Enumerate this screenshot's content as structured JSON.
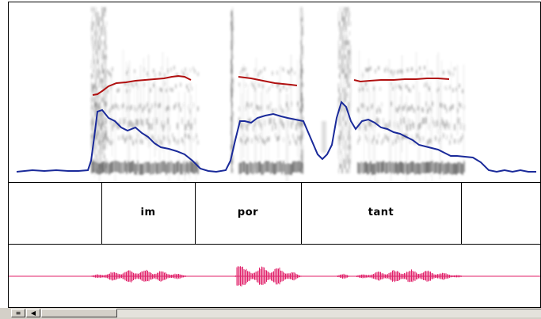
{
  "tiers": {
    "syllables": [
      {
        "label": "im"
      },
      {
        "label": "por"
      },
      {
        "label": "tant"
      }
    ]
  },
  "colors": {
    "pitch_curve": "#b01010",
    "intensity_curve": "#1a2a9a",
    "waveform": "#e0206a",
    "spectrogram_ink": "#303030"
  },
  "scrollbar": {
    "menu_icon": "list-icon",
    "left_icon": "arrow-left-icon"
  }
}
